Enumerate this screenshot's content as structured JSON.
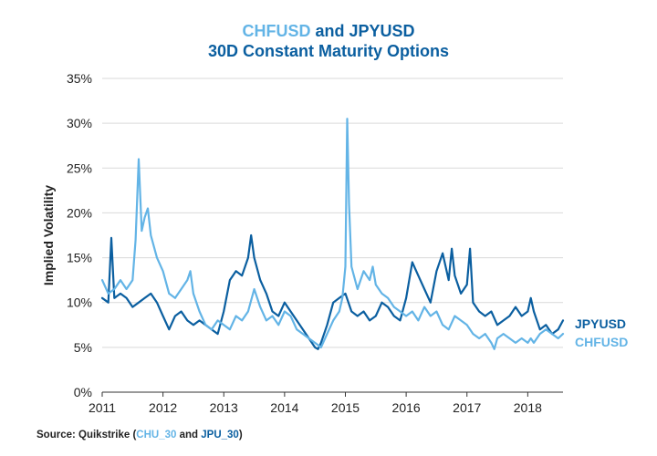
{
  "title": {
    "part1": "CHFUSD",
    "and": "and",
    "part2": "JPYUSD",
    "line2": "30D Constant Maturity Options"
  },
  "source": {
    "prefix": "Source: Quikstrike (",
    "code1": "CHU_30",
    "and": " and ",
    "code2": "JPU_30",
    "suffix": ")"
  },
  "colors": {
    "chf": "#63b4e6",
    "jpy": "#0b5fa0",
    "grid": "#d9d9d9",
    "axis_text": "#222222"
  },
  "chart_data": {
    "type": "line",
    "title": "CHFUSD and JPYUSD 30D Constant Maturity Options",
    "ylabel": "Implied Volatility",
    "xlabel": "",
    "ylim": [
      0,
      35
    ],
    "yticks": [
      "0%",
      "5%",
      "10%",
      "15%",
      "20%",
      "25%",
      "30%",
      "35%"
    ],
    "xlim": [
      2011,
      2018.58
    ],
    "xticks": [
      "2011",
      "2012",
      "2013",
      "2014",
      "2015",
      "2016",
      "2017",
      "2018"
    ],
    "grid": "horizontal",
    "legend": "right",
    "series": [
      {
        "name": "JPYUSD",
        "color": "#0b5fa0",
        "points": [
          [
            2011.0,
            10.5
          ],
          [
            2011.1,
            10.0
          ],
          [
            2011.15,
            17.2
          ],
          [
            2011.2,
            10.5
          ],
          [
            2011.3,
            11.0
          ],
          [
            2011.4,
            10.5
          ],
          [
            2011.5,
            9.5
          ],
          [
            2011.6,
            10.0
          ],
          [
            2011.7,
            10.5
          ],
          [
            2011.8,
            11.0
          ],
          [
            2011.9,
            10.0
          ],
          [
            2012.0,
            8.5
          ],
          [
            2012.1,
            7.0
          ],
          [
            2012.2,
            8.5
          ],
          [
            2012.3,
            9.0
          ],
          [
            2012.4,
            8.0
          ],
          [
            2012.5,
            7.5
          ],
          [
            2012.6,
            8.0
          ],
          [
            2012.7,
            7.5
          ],
          [
            2012.8,
            7.0
          ],
          [
            2012.9,
            6.5
          ],
          [
            2013.0,
            9.0
          ],
          [
            2013.1,
            12.5
          ],
          [
            2013.2,
            13.5
          ],
          [
            2013.3,
            13.0
          ],
          [
            2013.4,
            15.0
          ],
          [
            2013.45,
            17.5
          ],
          [
            2013.5,
            15.0
          ],
          [
            2013.6,
            12.5
          ],
          [
            2013.7,
            11.0
          ],
          [
            2013.8,
            9.0
          ],
          [
            2013.9,
            8.5
          ],
          [
            2014.0,
            10.0
          ],
          [
            2014.1,
            9.0
          ],
          [
            2014.2,
            8.0
          ],
          [
            2014.3,
            7.0
          ],
          [
            2014.4,
            6.0
          ],
          [
            2014.5,
            5.0
          ],
          [
            2014.55,
            4.8
          ],
          [
            2014.6,
            5.5
          ],
          [
            2014.7,
            7.5
          ],
          [
            2014.8,
            10.0
          ],
          [
            2014.9,
            10.5
          ],
          [
            2015.0,
            11.0
          ],
          [
            2015.1,
            9.0
          ],
          [
            2015.2,
            8.5
          ],
          [
            2015.3,
            9.0
          ],
          [
            2015.4,
            8.0
          ],
          [
            2015.5,
            8.5
          ],
          [
            2015.6,
            10.0
          ],
          [
            2015.7,
            9.5
          ],
          [
            2015.8,
            8.5
          ],
          [
            2015.9,
            8.0
          ],
          [
            2016.0,
            10.5
          ],
          [
            2016.1,
            14.5
          ],
          [
            2016.2,
            13.0
          ],
          [
            2016.3,
            11.5
          ],
          [
            2016.4,
            10.0
          ],
          [
            2016.5,
            13.5
          ],
          [
            2016.6,
            15.5
          ],
          [
            2016.7,
            12.5
          ],
          [
            2016.75,
            16.0
          ],
          [
            2016.8,
            13.0
          ],
          [
            2016.9,
            11.0
          ],
          [
            2017.0,
            12.0
          ],
          [
            2017.05,
            16.0
          ],
          [
            2017.1,
            10.0
          ],
          [
            2017.2,
            9.0
          ],
          [
            2017.3,
            8.5
          ],
          [
            2017.4,
            9.0
          ],
          [
            2017.5,
            7.5
          ],
          [
            2017.6,
            8.0
          ],
          [
            2017.7,
            8.5
          ],
          [
            2017.8,
            9.5
          ],
          [
            2017.9,
            8.5
          ],
          [
            2018.0,
            9.0
          ],
          [
            2018.05,
            10.5
          ],
          [
            2018.1,
            9.0
          ],
          [
            2018.2,
            7.0
          ],
          [
            2018.3,
            7.5
          ],
          [
            2018.4,
            6.5
          ],
          [
            2018.5,
            7.0
          ],
          [
            2018.58,
            8.0
          ]
        ]
      },
      {
        "name": "CHFUSD",
        "color": "#63b4e6",
        "points": [
          [
            2011.0,
            12.5
          ],
          [
            2011.1,
            11.0
          ],
          [
            2011.2,
            11.5
          ],
          [
            2011.3,
            12.5
          ],
          [
            2011.4,
            11.5
          ],
          [
            2011.5,
            12.5
          ],
          [
            2011.55,
            17.0
          ],
          [
            2011.6,
            26.0
          ],
          [
            2011.65,
            18.0
          ],
          [
            2011.7,
            19.5
          ],
          [
            2011.75,
            20.5
          ],
          [
            2011.8,
            17.5
          ],
          [
            2011.9,
            15.0
          ],
          [
            2012.0,
            13.5
          ],
          [
            2012.1,
            11.0
          ],
          [
            2012.2,
            10.5
          ],
          [
            2012.3,
            11.5
          ],
          [
            2012.4,
            12.5
          ],
          [
            2012.45,
            13.5
          ],
          [
            2012.5,
            11.0
          ],
          [
            2012.6,
            9.0
          ],
          [
            2012.7,
            7.5
          ],
          [
            2012.8,
            7.0
          ],
          [
            2012.9,
            8.0
          ],
          [
            2013.0,
            7.5
          ],
          [
            2013.1,
            7.0
          ],
          [
            2013.2,
            8.5
          ],
          [
            2013.3,
            8.0
          ],
          [
            2013.4,
            9.0
          ],
          [
            2013.5,
            11.5
          ],
          [
            2013.6,
            9.5
          ],
          [
            2013.7,
            8.0
          ],
          [
            2013.8,
            8.5
          ],
          [
            2013.9,
            7.5
          ],
          [
            2014.0,
            9.0
          ],
          [
            2014.1,
            8.5
          ],
          [
            2014.2,
            7.0
          ],
          [
            2014.3,
            6.5
          ],
          [
            2014.4,
            6.0
          ],
          [
            2014.5,
            5.5
          ],
          [
            2014.6,
            5.0
          ],
          [
            2014.7,
            6.5
          ],
          [
            2014.8,
            8.0
          ],
          [
            2014.9,
            9.0
          ],
          [
            2014.95,
            10.5
          ],
          [
            2015.0,
            14.0
          ],
          [
            2015.03,
            30.5
          ],
          [
            2015.06,
            21.0
          ],
          [
            2015.1,
            14.0
          ],
          [
            2015.2,
            11.5
          ],
          [
            2015.3,
            13.5
          ],
          [
            2015.4,
            12.5
          ],
          [
            2015.45,
            14.0
          ],
          [
            2015.5,
            12.0
          ],
          [
            2015.6,
            11.0
          ],
          [
            2015.7,
            10.5
          ],
          [
            2015.8,
            9.5
          ],
          [
            2015.9,
            9.0
          ],
          [
            2016.0,
            8.5
          ],
          [
            2016.1,
            9.0
          ],
          [
            2016.2,
            8.0
          ],
          [
            2016.3,
            9.5
          ],
          [
            2016.4,
            8.5
          ],
          [
            2016.5,
            9.0
          ],
          [
            2016.6,
            7.5
          ],
          [
            2016.7,
            7.0
          ],
          [
            2016.8,
            8.5
          ],
          [
            2016.9,
            8.0
          ],
          [
            2017.0,
            7.5
          ],
          [
            2017.1,
            6.5
          ],
          [
            2017.2,
            6.0
          ],
          [
            2017.3,
            6.5
          ],
          [
            2017.4,
            5.5
          ],
          [
            2017.45,
            4.8
          ],
          [
            2017.5,
            6.0
          ],
          [
            2017.6,
            6.5
          ],
          [
            2017.7,
            6.0
          ],
          [
            2017.8,
            5.5
          ],
          [
            2017.9,
            6.0
          ],
          [
            2018.0,
            5.5
          ],
          [
            2018.05,
            6.0
          ],
          [
            2018.1,
            5.5
          ],
          [
            2018.2,
            6.5
          ],
          [
            2018.3,
            7.0
          ],
          [
            2018.4,
            6.5
          ],
          [
            2018.5,
            6.0
          ],
          [
            2018.58,
            6.5
          ]
        ]
      }
    ]
  }
}
